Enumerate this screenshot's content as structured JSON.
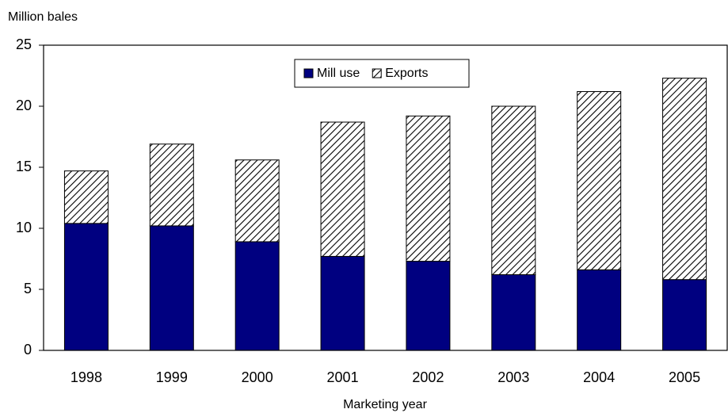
{
  "chart_data": {
    "type": "stacked-bar",
    "y_label": "Million bales",
    "x_label": "Marketing year",
    "categories": [
      "1998",
      "1999",
      "2000",
      "2001",
      "2002",
      "2003",
      "2004",
      "2005"
    ],
    "series": [
      {
        "name": "Mill use",
        "color": "#000080",
        "values": [
          10.4,
          10.2,
          8.9,
          7.7,
          7.3,
          6.2,
          6.6,
          5.8
        ]
      },
      {
        "name": "Exports",
        "color": "#000000",
        "pattern": "diagonal-hatch",
        "values": [
          4.3,
          6.7,
          6.7,
          11.0,
          11.9,
          13.8,
          14.6,
          16.5
        ]
      }
    ],
    "ylim": [
      0,
      25
    ],
    "yticks": [
      0,
      5,
      10,
      15,
      20,
      25
    ],
    "grid": false,
    "legend": "top"
  }
}
